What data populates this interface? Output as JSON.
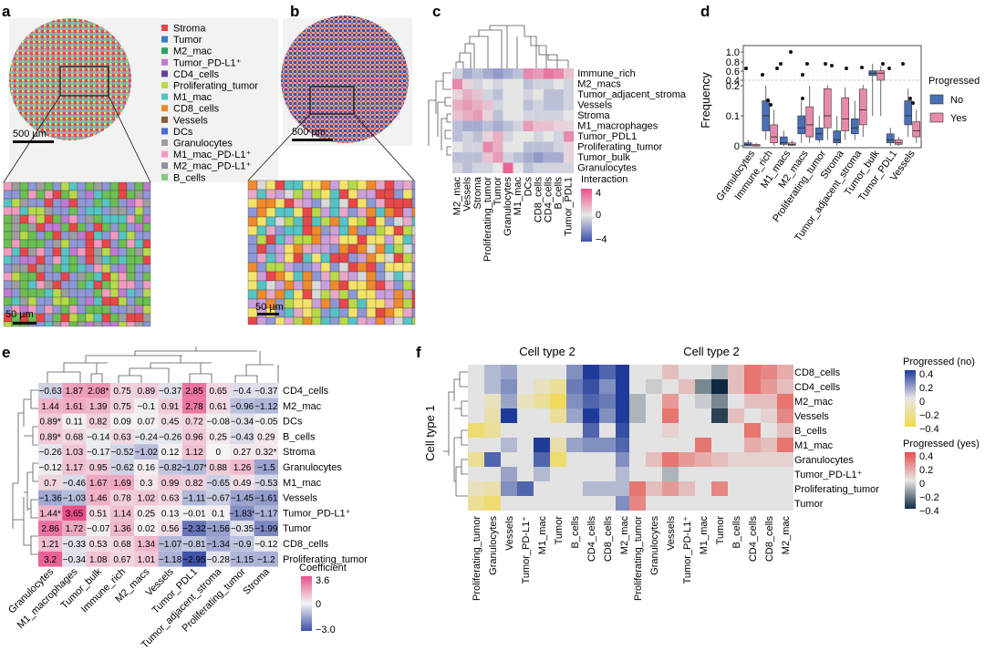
{
  "panel_labels": {
    "a": "a",
    "b": "b",
    "c": "c",
    "d": "d",
    "e": "e",
    "f": "f"
  },
  "panel_a": {
    "legend": [
      {
        "label": "Stroma",
        "color": "#e8474a"
      },
      {
        "label": "Tumor",
        "color": "#3a7fc0"
      },
      {
        "label": "M2_mac",
        "color": "#2ca25f"
      },
      {
        "label": "Tumor_PD-L1⁺",
        "color": "#c07ad1"
      },
      {
        "label": "CD4_cells",
        "color": "#6a3d9a"
      },
      {
        "label": "Proliferating_tumor",
        "color": "#b8d94a"
      },
      {
        "label": "M1_mac",
        "color": "#56c4c4"
      },
      {
        "label": "CD8_cells",
        "color": "#ef8a2d"
      },
      {
        "label": "Vessels",
        "color": "#8c5a2e"
      },
      {
        "label": "DCs",
        "color": "#4a6bd1"
      },
      {
        "label": "Granulocytes",
        "color": "#9e9e9e"
      },
      {
        "label": "M1_mac_PD-L1⁺",
        "color": "#f29bc1"
      },
      {
        "label": "M2_mac_PD-L1⁺",
        "color": "#8f8fa8"
      },
      {
        "label": "B_cells",
        "color": "#7fc97f"
      }
    ],
    "scalebar_main": "500 µm",
    "scalebar_zoom": "50 µm"
  },
  "panel_b": {
    "scalebar_main": "500 µm",
    "scalebar_zoom": "50 µm"
  },
  "panel_c": {
    "chart_data": {
      "type": "heatmap",
      "rows": [
        "Immune_rich",
        "M2_macs",
        "Tumor_adjacent_stroma",
        "Vessels",
        "Stroma",
        "M1_macrophages",
        "Tumor_PDL1",
        "Proliferating_tumor",
        "Tumor_bulk",
        "Granulocytes"
      ],
      "columns": [
        "M2_mac",
        "Vessels",
        "Stroma",
        "Proliferating_tumor",
        "Tumor",
        "Granulocytes",
        "M1_mac",
        "DCs",
        "CD8_cells",
        "CD4_cells",
        "B_cells",
        "Tumor_PDL1"
      ],
      "values": [
        [
          -0.5,
          -1.5,
          -1,
          -1.5,
          -2,
          -1.5,
          -1,
          2.5,
          2,
          3,
          2.5,
          1
        ],
        [
          2.5,
          0.5,
          -0.5,
          0,
          -0.5,
          0,
          0,
          -1,
          -0.5,
          -0.5,
          0,
          -0.5
        ],
        [
          0.5,
          1.5,
          1,
          -0.5,
          -1,
          0,
          0,
          -0.5,
          0,
          -1,
          -1,
          -0.5
        ],
        [
          1.5,
          2,
          1.5,
          1,
          -0.5,
          0,
          0,
          -1,
          -0.5,
          -1,
          -1,
          -0.5
        ],
        [
          1,
          1.5,
          2,
          0.5,
          -1,
          0,
          0,
          -0.5,
          -0.5,
          -0.5,
          -0.5,
          0
        ],
        [
          -1,
          -1.5,
          -1.5,
          -1,
          -1.5,
          -1,
          -0.5,
          2,
          1,
          1,
          0.5,
          0.5
        ],
        [
          -1,
          -0.5,
          -1,
          0.5,
          1.5,
          -0.5,
          0,
          0,
          -0.5,
          0,
          -0.5,
          2.5
        ],
        [
          0,
          -0.5,
          -0.5,
          2.5,
          1.5,
          0,
          0,
          -1,
          -1,
          -1,
          -0.5,
          0.5
        ],
        [
          -1,
          -1,
          -1,
          1,
          2,
          -0.5,
          -1,
          -1.5,
          -2,
          -1.5,
          -1.5,
          0.5
        ],
        [
          -0.5,
          -1,
          -0.5,
          -0.5,
          0,
          3.5,
          0,
          -1,
          -0.5,
          -0.5,
          -0.5,
          -0.5
        ]
      ],
      "colorbar": {
        "label": "Interaction",
        "min": -4,
        "max": 4,
        "ticks": [
          "4",
          "0",
          "−4"
        ]
      }
    }
  },
  "panel_d": {
    "chart_data": {
      "type": "box",
      "ylabel": "Frequency",
      "categories": [
        "Granulocytes",
        "Immune_rich",
        "M1_macs",
        "M2_macs",
        "Proliferating_tumor",
        "Stroma",
        "Tumor_adjacent_stroma",
        "Tumor_bulk",
        "Tumor_PDL1",
        "Vessels"
      ],
      "yticks_top": [
        "1.0",
        "0.8",
        "0.6",
        "0.4"
      ],
      "yticks_bottom": [
        "0.2",
        "0.1",
        "0"
      ],
      "legend": {
        "title": "Progressed",
        "items": [
          {
            "label": "No",
            "color": "#4a6fb5"
          },
          {
            "label": "Yes",
            "color": "#e88aac"
          }
        ]
      },
      "series": [
        {
          "name": "No",
          "boxes": [
            [
              0,
              0,
              0.005,
              0.01,
              0.02
            ],
            [
              0.02,
              0.05,
              0.1,
              0.15,
              0.2
            ],
            [
              0,
              0.005,
              0.01,
              0.03,
              0.05
            ],
            [
              0.01,
              0.04,
              0.06,
              0.1,
              0.15
            ],
            [
              0.01,
              0.02,
              0.04,
              0.06,
              0.1
            ],
            [
              0,
              0.01,
              0.02,
              0.05,
              0.1
            ],
            [
              0.02,
              0.04,
              0.06,
              0.09,
              0.15
            ],
            [
              0.1,
              0.5,
              0.55,
              0.6,
              0.75
            ],
            [
              0,
              0.01,
              0.02,
              0.04,
              0.06
            ],
            [
              0.03,
              0.07,
              0.1,
              0.15,
              0.22
            ]
          ]
        },
        {
          "name": "Yes",
          "boxes": [
            [
              0,
              0,
              0,
              0.005,
              0.01
            ],
            [
              0,
              0.01,
              0.03,
              0.07,
              0.12
            ],
            [
              0,
              0.002,
              0.005,
              0.01,
              0.02
            ],
            [
              0.01,
              0.03,
              0.07,
              0.13,
              0.2
            ],
            [
              0.02,
              0.06,
              0.1,
              0.19,
              0.3
            ],
            [
              0.02,
              0.05,
              0.09,
              0.16,
              0.25
            ],
            [
              0.03,
              0.07,
              0.12,
              0.21,
              0.3
            ],
            [
              0.1,
              0.4,
              0.55,
              0.6,
              0.7
            ],
            [
              0,
              0.005,
              0.01,
              0.02,
              0.03
            ],
            [
              0.01,
              0.03,
              0.05,
              0.08,
              0.12
            ]
          ]
        }
      ]
    }
  },
  "panel_e": {
    "chart_data": {
      "type": "heatmap",
      "rows": [
        "CD4_cells",
        "M2_mac",
        "DCs",
        "B_cells",
        "Stroma",
        "Granulocytes",
        "M1_mac",
        "Vessels",
        "Tumor_PD-L1⁺",
        "Tumor",
        "CD8_cells",
        "Proliferating_tumor"
      ],
      "columns": [
        "Granulocytes",
        "M1_macrophages",
        "Tumor_bulk",
        "Immune_rich",
        "M2_macs",
        "Vessels",
        "Tumor_PDL1",
        "Tumor_adjacent_stroma",
        "Proliferating_tumor",
        "Stroma"
      ],
      "values": [
        [
          -0.63,
          1.87,
          2.08,
          0.75,
          0.89,
          -0.37,
          2.85,
          0.65,
          -0.4,
          -0.37
        ],
        [
          1.44,
          1.61,
          1.39,
          0.75,
          -0.1,
          0.91,
          2.78,
          0.61,
          -0.96,
          -1.12
        ],
        [
          0.89,
          0.11,
          0.82,
          0.09,
          0.07,
          0.45,
          0.72,
          -0.08,
          -0.34,
          -0.05
        ],
        [
          0.89,
          0.68,
          -0.14,
          0.63,
          -0.24,
          -0.26,
          0.96,
          0.25,
          -0.43,
          0.29
        ],
        [
          -0.26,
          1.03,
          -0.17,
          -0.52,
          -1.02,
          0.12,
          1.12,
          0,
          0.27,
          0.32
        ],
        [
          -0.12,
          1.17,
          0.95,
          -0.62,
          0.16,
          -0.82,
          -1.07,
          0.88,
          1.26,
          -1.5
        ],
        [
          0.7,
          -0.46,
          1.67,
          1.69,
          0.3,
          0.99,
          0.82,
          -0.65,
          0.49,
          -0.53
        ],
        [
          -1.36,
          -1.03,
          1.46,
          0.78,
          1.02,
          0.63,
          -1.11,
          -0.67,
          -1.45,
          -1.61
        ],
        [
          1.44,
          3.65,
          0.51,
          1.14,
          0.25,
          0.13,
          -0.01,
          0.1,
          -1.83,
          -1.17
        ],
        [
          2.86,
          1.72,
          -0.07,
          1.36,
          0.02,
          0.56,
          -2.32,
          -1.56,
          -0.35,
          -1.99
        ],
        [
          1.21,
          -0.33,
          0.53,
          0.68,
          1.34,
          -1.07,
          -0.81,
          -1.34,
          -0.9,
          -0.12
        ],
        [
          3.2,
          -0.34,
          1.08,
          0.67,
          1.01,
          -1.18,
          -2.95,
          -0.28,
          -1.15,
          -1.2
        ]
      ],
      "labels": [
        [
          "−0.63",
          "1.87",
          "2.08*",
          "0.75",
          "0.89",
          "−0.37",
          "2.85",
          "0.65",
          "−0.4",
          "−0.37"
        ],
        [
          "1.44",
          "1.61",
          "1.39",
          "0.75",
          "−0.1",
          "0.91",
          "2.78",
          "0.61",
          "−0.96",
          "−1.12"
        ],
        [
          "0.89*",
          "0.11",
          "0.82",
          "0.09",
          "0.07",
          "0.45",
          "0.72",
          "−0.08",
          "−0.34",
          "−0.05"
        ],
        [
          "0.89*",
          "0.68",
          "−0.14",
          "0.63",
          "−0.24",
          "−0.26",
          "0.96",
          "0.25",
          "−0.43",
          "0.29"
        ],
        [
          "−0.26",
          "1.03",
          "−0.17",
          "−0.52",
          "−1.02",
          "0.12",
          "1.12",
          "0",
          "0.27",
          "0.32*"
        ],
        [
          "−0.12",
          "1.17",
          "0.95",
          "−0.62",
          "0.16",
          "−0.82",
          "−1.07*",
          "0.88",
          "1.26",
          "−1.5"
        ],
        [
          "0.7",
          "−0.46",
          "1.67",
          "1.69",
          "0.3",
          "0.99",
          "0.82",
          "−0.65",
          "0.49",
          "−0.53"
        ],
        [
          "−1.36",
          "−1.03",
          "1.46",
          "0.78",
          "1.02",
          "0.63",
          "−1.11",
          "−0.67",
          "−1.45",
          "−1.61"
        ],
        [
          "1.44*",
          "3.65",
          "0.51",
          "1.14",
          "0.25",
          "0.13",
          "−0.01",
          "0.1",
          "−1.83*",
          "−1.17"
        ],
        [
          "2.86",
          "1.72",
          "−0.07",
          "1.36",
          "0.02",
          "0.56",
          "−2.32",
          "−1.56",
          "−0.35",
          "−1.99"
        ],
        [
          "1.21",
          "−0.33",
          "0.53",
          "0.68",
          "1.34",
          "−1.07",
          "−0.81",
          "−1.34",
          "−0.9",
          "−0.12"
        ],
        [
          "3.2",
          "−0.34",
          "1.08",
          "0.67",
          "1.01",
          "−1.18",
          "−2.95",
          "−0.28",
          "−1.15",
          "−1.2"
        ]
      ],
      "colorbar": {
        "label": "Coefficient",
        "min": -3.0,
        "max": 3.6,
        "ticks": [
          "3.6",
          "0",
          "−3.0"
        ]
      }
    }
  },
  "panel_f": {
    "chart_data": {
      "type": "heatmap",
      "ylabel": "Cell type 1",
      "title_left": "Cell type 2",
      "title_right": "Cell type 2",
      "rows": [
        "CD8_cells",
        "CD4_cells",
        "M2_mac",
        "Vessels",
        "B_cells",
        "M1_mac",
        "Granulocytes",
        "Tumor_PD-L1⁺",
        "Proliferating_tumor",
        "Tumor"
      ],
      "columns": [
        "Proliferating_tumor",
        "Granulocytes",
        "Vessels",
        "Tumor_PD-L1⁺",
        "M1_mac",
        "Tumor",
        "B_cells",
        "CD4_cells",
        "CD8_cells",
        "M2_mac"
      ],
      "values_no": [
        [
          0,
          0.1,
          0.15,
          0,
          0,
          0,
          0.2,
          0.4,
          0.3,
          0.4
        ],
        [
          0,
          0.1,
          0.2,
          0,
          -0.1,
          -0.2,
          0.25,
          0.35,
          0.2,
          0.4
        ],
        [
          0,
          -0.1,
          0.15,
          -0.1,
          -0.2,
          -0.35,
          0.2,
          0.3,
          0.25,
          0.4
        ],
        [
          0,
          -0.15,
          0.4,
          0,
          0,
          -0.2,
          0.15,
          0.4,
          0.2,
          0.4
        ],
        [
          -0.3,
          -0.2,
          0,
          0,
          0,
          0,
          0,
          0.3,
          0,
          0.35
        ],
        [
          0,
          0,
          0.1,
          0,
          0.4,
          -0.15,
          0.15,
          0.2,
          0.2,
          0.3
        ],
        [
          -0.2,
          0.3,
          0,
          0,
          0.3,
          -0.3,
          0,
          0,
          0,
          0.2
        ],
        [
          0,
          0,
          0.15,
          0,
          0.1,
          0,
          0,
          0,
          0,
          0.1
        ],
        [
          -0.1,
          -0.15,
          0.2,
          0.3,
          0,
          0,
          0,
          0.1,
          0.1,
          0.1
        ],
        [
          -0.2,
          -0.3,
          0,
          0,
          0,
          0,
          0,
          0,
          0,
          0.2
        ]
      ],
      "values_yes": [
        [
          0,
          0,
          0.1,
          0,
          0,
          -0.1,
          0.1,
          0.3,
          0.25,
          0.15
        ],
        [
          0,
          -0.05,
          0,
          0.1,
          -0.2,
          -0.4,
          0.1,
          0.3,
          0.2,
          0.1
        ],
        [
          -0.1,
          0,
          0.2,
          0,
          -0.05,
          -0.2,
          0,
          0.1,
          0.1,
          0.3
        ],
        [
          -0.1,
          0,
          0.3,
          0,
          0,
          -0.35,
          0.1,
          0,
          0.05,
          0.25
        ],
        [
          0,
          0,
          0.05,
          0,
          0,
          0,
          0,
          0.3,
          0,
          0.1
        ],
        [
          0,
          0,
          0,
          0,
          0.3,
          0,
          0,
          0.15,
          0.1,
          0.3
        ],
        [
          0,
          0.1,
          0.3,
          0.2,
          0.15,
          0.1,
          0.05,
          0.05,
          0.05,
          0.05
        ],
        [
          0,
          0,
          -0.1,
          0,
          0,
          0,
          0,
          0,
          0,
          0
        ],
        [
          0.3,
          0.1,
          0.2,
          0.1,
          0,
          0.25,
          0,
          0,
          0,
          0
        ],
        [
          0.25,
          0,
          0,
          0,
          0,
          0,
          0,
          0,
          0,
          0
        ]
      ],
      "colorbar_no": {
        "label": "Progressed (no)",
        "ticks": [
          "0.4",
          "0.2",
          "0",
          "−0.2",
          "−0.4"
        ]
      },
      "colorbar_yes": {
        "label": "Progressed (yes)",
        "ticks": [
          "0.4",
          "0.2",
          "0",
          "−0.2",
          "−0.4"
        ]
      }
    }
  }
}
